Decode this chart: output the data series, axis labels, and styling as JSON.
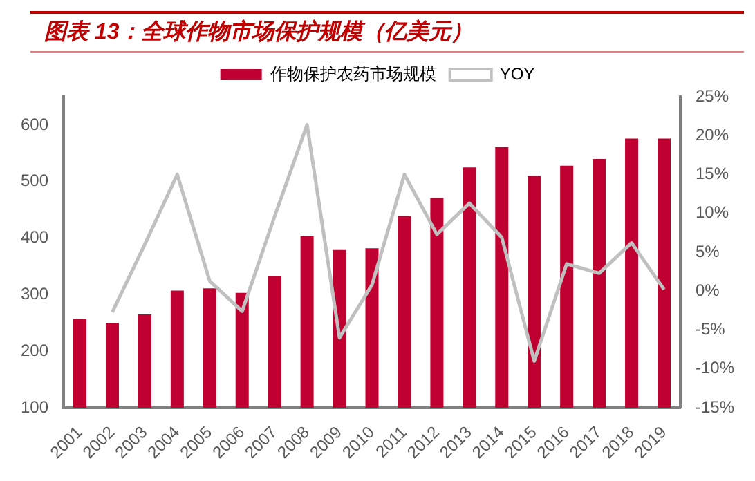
{
  "chart_data": {
    "type": "bar",
    "title": "图表 13：全球作物市场保护规模（亿美元）",
    "categories": [
      "2001",
      "2002",
      "2003",
      "2004",
      "2005",
      "2006",
      "2007",
      "2008",
      "2009",
      "2010",
      "2011",
      "2012",
      "2013",
      "2014",
      "2015",
      "2016",
      "2017",
      "2018",
      "2019"
    ],
    "series": [
      {
        "name": "作物保护农药市场规模",
        "color": "#c00030",
        "values": [
          257,
          250,
          265,
          307,
          311,
          303,
          332,
          403,
          379,
          382,
          439,
          471,
          525,
          561,
          510,
          528,
          540,
          576,
          576
        ]
      },
      {
        "name": "YOY",
        "type": "line",
        "axis": "y2",
        "color": "#c0c0c0",
        "values": [
          null,
          -2.7,
          6,
          15,
          1.3,
          -2.6,
          9.6,
          21.4,
          -6,
          0.8,
          15,
          7.3,
          11.3,
          6.9,
          -9,
          3.5,
          2.3,
          6.2,
          0.2
        ]
      }
    ],
    "ylim": [
      100,
      650
    ],
    "yticks": [
      100,
      200,
      300,
      400,
      500,
      600
    ],
    "y2lim": [
      -15,
      25
    ],
    "y2ticks": [
      {
        "value": -15,
        "label": "-15%"
      },
      {
        "value": -10,
        "label": "-10%"
      },
      {
        "value": -5,
        "label": "-5%"
      },
      {
        "value": 0,
        "label": "0%"
      },
      {
        "value": 5,
        "label": "5%"
      },
      {
        "value": 10,
        "label": "10%"
      },
      {
        "value": 15,
        "label": "15%"
      },
      {
        "value": 20,
        "label": "20%"
      },
      {
        "value": 25,
        "label": "25%"
      }
    ],
    "legend": "top",
    "grid": false,
    "marker": "none"
  }
}
